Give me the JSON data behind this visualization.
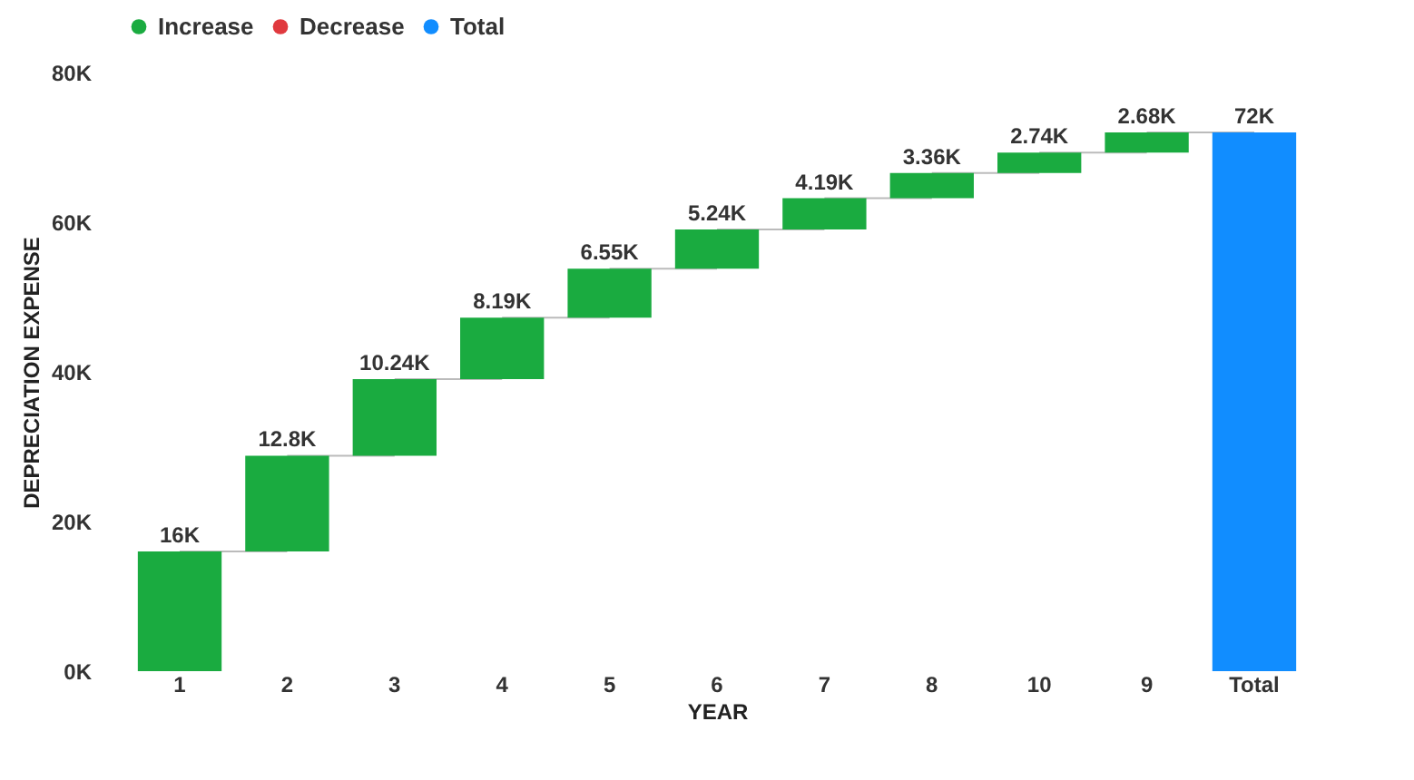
{
  "chart_data": {
    "type": "bar",
    "xlabel": "YEAR",
    "ylabel": "DEPRECIATION EXPENSE",
    "categories": [
      "1",
      "2",
      "3",
      "4",
      "5",
      "6",
      "7",
      "8",
      "10",
      "9",
      "Total"
    ],
    "series": [
      {
        "name": "Increase",
        "color": "#1aab40",
        "values": [
          16,
          12.8,
          10.24,
          8.19,
          6.55,
          5.24,
          4.19,
          3.36,
          2.74,
          2.68,
          null
        ],
        "base": [
          0,
          16,
          28.8,
          39.04,
          47.23,
          53.78,
          59.02,
          63.21,
          66.57,
          69.31,
          null
        ],
        "value_labels": [
          "16K",
          "12.8K",
          "10.24K",
          "8.19K",
          "6.55K",
          "5.24K",
          "4.19K",
          "3.36K",
          "2.74K",
          "2.68K",
          null
        ]
      },
      {
        "name": "Decrease",
        "color": "#e0393e",
        "values": [
          null,
          null,
          null,
          null,
          null,
          null,
          null,
          null,
          null,
          null,
          null
        ]
      },
      {
        "name": "Total",
        "color": "#118dff",
        "values": [
          null,
          null,
          null,
          null,
          null,
          null,
          null,
          null,
          null,
          null,
          72
        ],
        "value_labels": [
          null,
          null,
          null,
          null,
          null,
          null,
          null,
          null,
          null,
          null,
          "72K"
        ]
      }
    ],
    "ylim": [
      0,
      80
    ],
    "yticks": [
      {
        "value": 0,
        "label": "0K"
      },
      {
        "value": 20,
        "label": "20K"
      },
      {
        "value": 40,
        "label": "40K"
      },
      {
        "value": 60,
        "label": "60K"
      },
      {
        "value": 80,
        "label": "80K"
      }
    ],
    "grid": false,
    "legend": "top"
  }
}
